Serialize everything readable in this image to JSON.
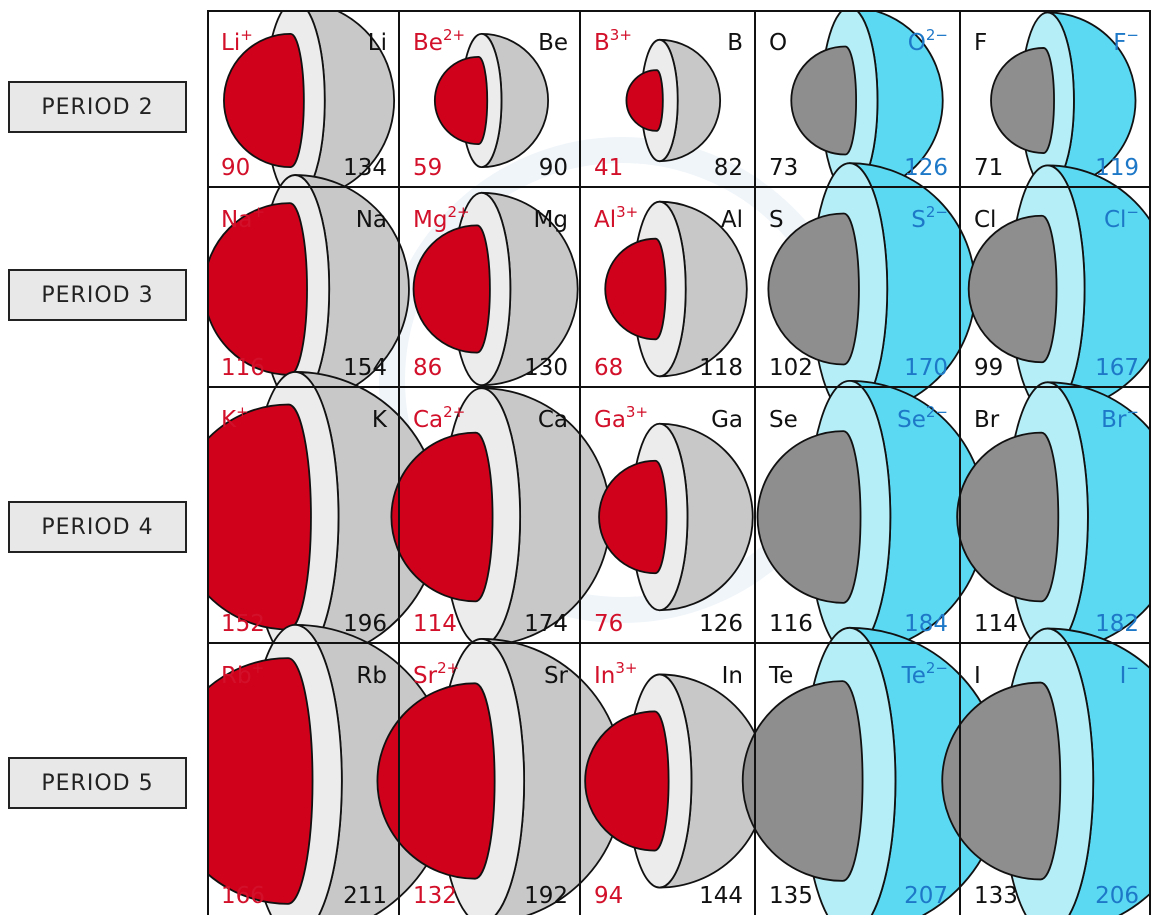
{
  "colors": {
    "cation_text": "#d2102a",
    "anion_text": "#1e78c8",
    "atom_text": "#111111",
    "cation_fill": "#d0021b",
    "metal_shell": "#c8c8c8",
    "metal_shell_inner": "#ececec",
    "nonmetal_core": "#8e8e8e",
    "anion_shell": "#5bd8f2",
    "anion_shell_inner": "#b6eef8",
    "period_label_bg": "#e8e8e8"
  },
  "periods": [
    {
      "label": "PERIOD  2",
      "cells": [
        {
          "kind": "metal",
          "ion": {
            "symbol": "Li",
            "charge": "+",
            "radius": "90"
          },
          "atom": {
            "symbol": "Li",
            "radius": "134"
          }
        },
        {
          "kind": "metal",
          "ion": {
            "symbol": "Be",
            "charge": "2+",
            "radius": "59"
          },
          "atom": {
            "symbol": "Be",
            "radius": "90"
          }
        },
        {
          "kind": "metal",
          "ion": {
            "symbol": "B",
            "charge": "3+",
            "radius": "41"
          },
          "atom": {
            "symbol": "B",
            "radius": "82"
          }
        },
        {
          "kind": "nonmetal",
          "atom": {
            "symbol": "O",
            "radius": "73"
          },
          "ion": {
            "symbol": "O",
            "charge": "2−",
            "radius": "126"
          }
        },
        {
          "kind": "nonmetal",
          "atom": {
            "symbol": "F",
            "radius": "71"
          },
          "ion": {
            "symbol": "F",
            "charge": "−",
            "radius": "119"
          }
        }
      ]
    },
    {
      "label": "PERIOD  3",
      "cells": [
        {
          "kind": "metal",
          "ion": {
            "symbol": "Na",
            "charge": "+",
            "radius": "116"
          },
          "atom": {
            "symbol": "Na",
            "radius": "154"
          }
        },
        {
          "kind": "metal",
          "ion": {
            "symbol": "Mg",
            "charge": "2+",
            "radius": "86"
          },
          "atom": {
            "symbol": "Mg",
            "radius": "130"
          }
        },
        {
          "kind": "metal",
          "ion": {
            "symbol": "Al",
            "charge": "3+",
            "radius": "68"
          },
          "atom": {
            "symbol": "Al",
            "radius": "118"
          }
        },
        {
          "kind": "nonmetal",
          "atom": {
            "symbol": "S",
            "radius": "102"
          },
          "ion": {
            "symbol": "S",
            "charge": "2−",
            "radius": "170"
          }
        },
        {
          "kind": "nonmetal",
          "atom": {
            "symbol": "Cl",
            "radius": "99"
          },
          "ion": {
            "symbol": "Cl",
            "charge": "−",
            "radius": "167"
          }
        }
      ]
    },
    {
      "label": "PERIOD  4",
      "cells": [
        {
          "kind": "metal",
          "ion": {
            "symbol": "K",
            "charge": "+",
            "radius": "152"
          },
          "atom": {
            "symbol": "K",
            "radius": "196"
          }
        },
        {
          "kind": "metal",
          "ion": {
            "symbol": "Ca",
            "charge": "2+",
            "radius": "114"
          },
          "atom": {
            "symbol": "Ca",
            "radius": "174"
          }
        },
        {
          "kind": "metal",
          "ion": {
            "symbol": "Ga",
            "charge": "3+",
            "radius": "76"
          },
          "atom": {
            "symbol": "Ga",
            "radius": "126"
          }
        },
        {
          "kind": "nonmetal",
          "atom": {
            "symbol": "Se",
            "radius": "116"
          },
          "ion": {
            "symbol": "Se",
            "charge": "2−",
            "radius": "184"
          }
        },
        {
          "kind": "nonmetal",
          "atom": {
            "symbol": "Br",
            "radius": "114"
          },
          "ion": {
            "symbol": "Br",
            "charge": "−",
            "radius": "182"
          }
        }
      ]
    },
    {
      "label": "PERIOD  5",
      "cells": [
        {
          "kind": "metal",
          "ion": {
            "symbol": "Rb",
            "charge": "+",
            "radius": "166"
          },
          "atom": {
            "symbol": "Rb",
            "radius": "211"
          }
        },
        {
          "kind": "metal",
          "ion": {
            "symbol": "Sr",
            "charge": "2+",
            "radius": "132"
          },
          "atom": {
            "symbol": "Sr",
            "radius": "192"
          }
        },
        {
          "kind": "metal",
          "ion": {
            "symbol": "In",
            "charge": "3+",
            "radius": "94"
          },
          "atom": {
            "symbol": "In",
            "radius": "144"
          }
        },
        {
          "kind": "nonmetal",
          "atom": {
            "symbol": "Te",
            "radius": "135"
          },
          "ion": {
            "symbol": "Te",
            "charge": "2−",
            "radius": "207"
          }
        },
        {
          "kind": "nonmetal",
          "atom": {
            "symbol": "I",
            "radius": "133"
          },
          "ion": {
            "symbol": "I",
            "charge": "−",
            "radius": "206"
          }
        }
      ]
    }
  ]
}
